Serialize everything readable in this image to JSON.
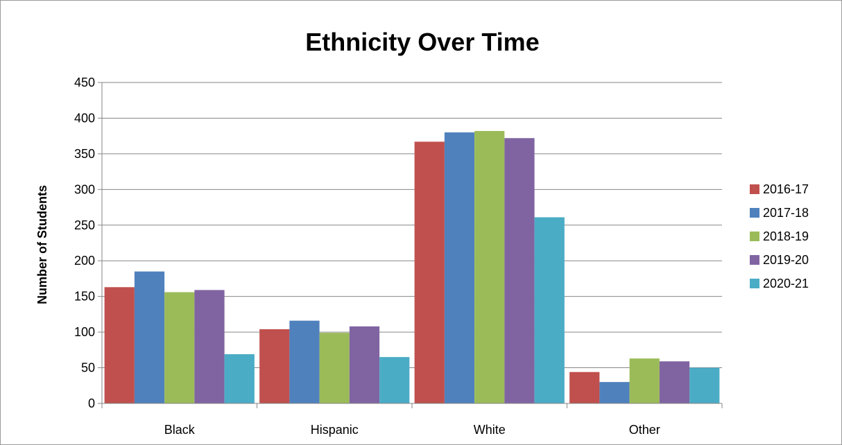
{
  "chart_data": {
    "type": "bar",
    "title": "Ethnicity Over Time",
    "xlabel": "",
    "ylabel": "Number of Students",
    "ylim": [
      0,
      450
    ],
    "ytick_step": 50,
    "grid": "horizontal",
    "legend_position": "right",
    "categories": [
      "Black",
      "Hispanic",
      "White",
      "Other"
    ],
    "series": [
      {
        "name": "2016-17",
        "color": "#c0504d",
        "values": [
          163,
          104,
          367,
          44
        ]
      },
      {
        "name": "2017-18",
        "color": "#4f81bd",
        "values": [
          185,
          116,
          380,
          30
        ]
      },
      {
        "name": "2018-19",
        "color": "#9bbb59",
        "values": [
          156,
          99,
          382,
          63
        ]
      },
      {
        "name": "2019-20",
        "color": "#8064a2",
        "values": [
          159,
          108,
          372,
          59
        ]
      },
      {
        "name": "2020-21",
        "color": "#4bacc6",
        "values": [
          69,
          65,
          261,
          50
        ]
      }
    ]
  }
}
